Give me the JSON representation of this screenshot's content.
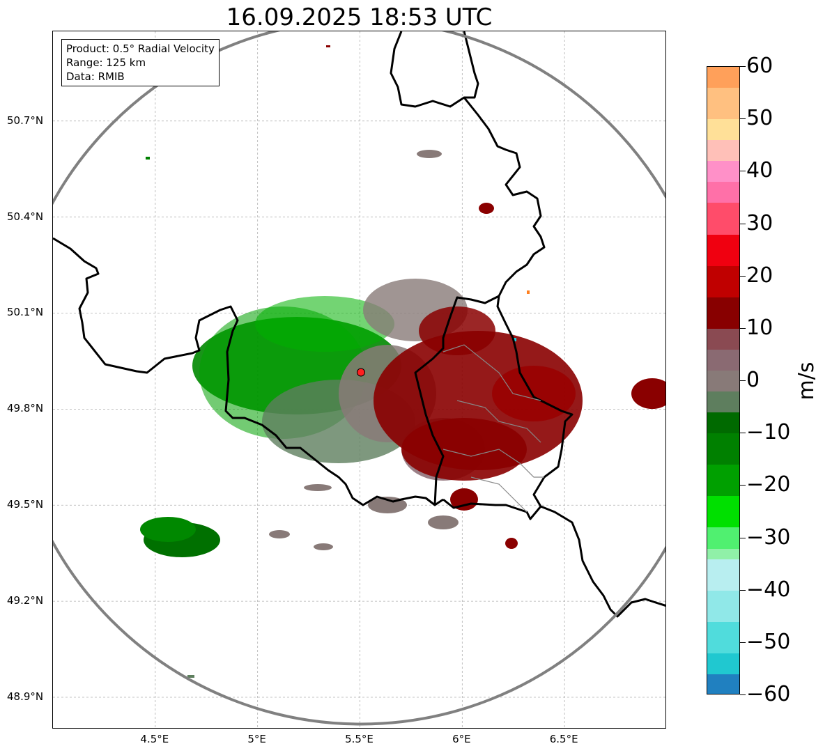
{
  "title": "16.09.2025 18:53 UTC",
  "info": {
    "product": "Product: 0.5° Radial Velocity",
    "range": "Range: 125 km",
    "data": "Data: RMIB"
  },
  "map_extent": {
    "lon_min": 4.0,
    "lon_max": 7.0,
    "lat_min": 48.8,
    "lat_max": 50.98
  },
  "radar_site": {
    "lon": 5.505,
    "lat": 49.915,
    "color": "#ff2020"
  },
  "lat_ticks": [
    {
      "value": 50.7,
      "label": "50.7°N"
    },
    {
      "value": 50.4,
      "label": "50.4°N"
    },
    {
      "value": 50.1,
      "label": "50.1°N"
    },
    {
      "value": 49.8,
      "label": "49.8°N"
    },
    {
      "value": 49.5,
      "label": "49.5°N"
    },
    {
      "value": 49.2,
      "label": "49.2°N"
    },
    {
      "value": 48.9,
      "label": "48.9°N"
    }
  ],
  "lon_ticks": [
    {
      "value": 4.5,
      "label": "4.5°E"
    },
    {
      "value": 5.0,
      "label": "5°E"
    },
    {
      "value": 5.5,
      "label": "5.5°E"
    },
    {
      "value": 6.0,
      "label": "6°E"
    },
    {
      "value": 6.5,
      "label": "6.5°E"
    }
  ],
  "colorbar": {
    "unit": "m/s",
    "min": -60,
    "max": 60,
    "ticks": [
      {
        "value": 60,
        "label": "60"
      },
      {
        "value": 50,
        "label": "50"
      },
      {
        "value": 40,
        "label": "40"
      },
      {
        "value": 30,
        "label": "30"
      },
      {
        "value": 20,
        "label": "20"
      },
      {
        "value": 10,
        "label": "10"
      },
      {
        "value": 0,
        "label": "0"
      },
      {
        "value": -10,
        "label": "−10"
      },
      {
        "value": -20,
        "label": "−20"
      },
      {
        "value": -30,
        "label": "−30"
      },
      {
        "value": -40,
        "label": "−40"
      },
      {
        "value": -50,
        "label": "−50"
      },
      {
        "value": -60,
        "label": "−60"
      }
    ],
    "bands": [
      {
        "from": 56,
        "to": 60,
        "color": "#ffa05a"
      },
      {
        "from": 50,
        "to": 56,
        "color": "#ffc080"
      },
      {
        "from": 46,
        "to": 50,
        "color": "#ffe098"
      },
      {
        "from": 42,
        "to": 46,
        "color": "#ffc0b8"
      },
      {
        "from": 38,
        "to": 42,
        "color": "#ff90c8"
      },
      {
        "from": 34,
        "to": 38,
        "color": "#ff70a8"
      },
      {
        "from": 28,
        "to": 34,
        "color": "#ff4c6a"
      },
      {
        "from": 22,
        "to": 28,
        "color": "#f00010"
      },
      {
        "from": 16,
        "to": 22,
        "color": "#c00000"
      },
      {
        "from": 10,
        "to": 16,
        "color": "#880000"
      },
      {
        "from": 6,
        "to": 10,
        "color": "#8a4a52"
      },
      {
        "from": 2,
        "to": 6,
        "color": "#8a6a72"
      },
      {
        "from": -2,
        "to": 2,
        "color": "#887a78"
      },
      {
        "from": -6,
        "to": -2,
        "color": "#5e7e5e"
      },
      {
        "from": -10,
        "to": -6,
        "color": "#006a00"
      },
      {
        "from": -16,
        "to": -10,
        "color": "#008000"
      },
      {
        "from": -22,
        "to": -16,
        "color": "#00a000"
      },
      {
        "from": -28,
        "to": -22,
        "color": "#00e000"
      },
      {
        "from": -32,
        "to": -28,
        "color": "#50f070"
      },
      {
        "from": -34,
        "to": -32,
        "color": "#90f0a8"
      },
      {
        "from": -40,
        "to": -34,
        "color": "#b8eef0"
      },
      {
        "from": -46,
        "to": -40,
        "color": "#90e8e8"
      },
      {
        "from": -52,
        "to": -46,
        "color": "#50dcdc"
      },
      {
        "from": -56,
        "to": -52,
        "color": "#20c8d0"
      },
      {
        "from": -60,
        "to": -56,
        "color": "#2080c0"
      }
    ]
  },
  "echo_colors": {
    "approaching_strong": "#007800",
    "approaching_light": "#00b400",
    "neutral": "#887a78",
    "neutral_green": "#5e7e5e",
    "receding": "#8a0000",
    "receding_dark": "#700000"
  },
  "range_ring_color": "#808080",
  "border_color": "#000000"
}
